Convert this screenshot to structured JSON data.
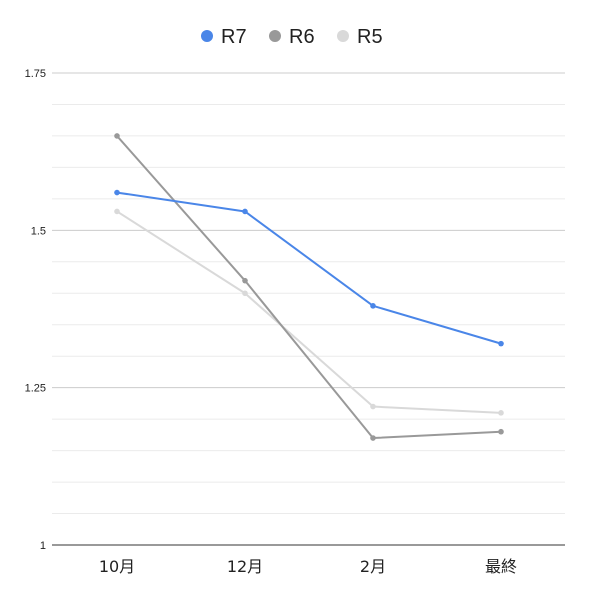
{
  "chart_data": {
    "type": "line",
    "categories": [
      "10月",
      "12月",
      "2月",
      "最終"
    ],
    "series": [
      {
        "name": "R7",
        "color": "#4a86e8",
        "values": [
          1.56,
          1.53,
          1.38,
          1.32
        ]
      },
      {
        "name": "R6",
        "color": "#999999",
        "values": [
          1.65,
          1.42,
          1.17,
          1.18
        ]
      },
      {
        "name": "R5",
        "color": "#d9d9d9",
        "values": [
          1.53,
          1.4,
          1.22,
          1.21
        ]
      }
    ],
    "ylim": [
      1,
      1.75
    ],
    "yticks": [
      {
        "value": 1,
        "label": "1"
      },
      {
        "value": 1.25,
        "label": "1.25"
      },
      {
        "value": 1.5,
        "label": "1.5"
      },
      {
        "value": 1.75,
        "label": "1.75"
      }
    ],
    "minor_grid_step": 0.05,
    "legend_position": "top-center",
    "grid": true
  }
}
